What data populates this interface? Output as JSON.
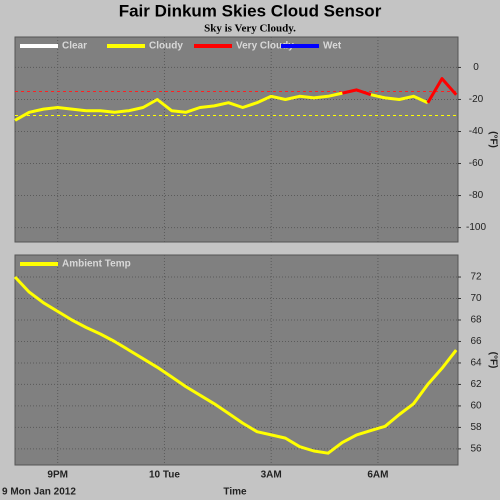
{
  "title": "Fair Dinkum Skies Cloud Sensor",
  "subtitle": "Sky is Very Cloudy.",
  "chart_data": [
    {
      "type": "line",
      "ylabel": "(°F)",
      "x": [
        19.8,
        20.2,
        20.6,
        21.0,
        21.4,
        21.8,
        22.2,
        22.6,
        23.0,
        23.4,
        23.8,
        24.2,
        24.6,
        25.0,
        25.4,
        25.8,
        26.2,
        26.6,
        27.0,
        27.4,
        27.8,
        28.2,
        28.6,
        29.0,
        29.4,
        29.8,
        30.2,
        30.6,
        31.0,
        31.4,
        31.8,
        32.2
      ],
      "xlim": [
        19.8,
        32.25
      ],
      "xticks": [
        21,
        24,
        27,
        30
      ],
      "ylim": [
        -109,
        19
      ],
      "yticks": [
        0,
        -20,
        -40,
        -60,
        -80,
        -100
      ],
      "grid": true,
      "thresholds": [
        {
          "value": -15,
          "color": "#ff2020"
        },
        {
          "value": -30,
          "color": "#ffff00"
        }
      ],
      "series": [
        {
          "name": "Clear",
          "color": "#ffffff",
          "values": [
            null,
            null,
            null,
            null,
            null,
            null,
            null,
            null,
            null,
            null,
            null,
            null,
            null,
            null,
            null,
            null,
            null,
            null,
            null,
            null,
            null,
            null,
            null,
            null,
            null,
            null,
            null,
            null,
            null,
            null,
            null,
            null
          ]
        },
        {
          "name": "Cloudy",
          "color": "#ffff00",
          "values": [
            -33,
            -28,
            -26,
            -25,
            -26,
            -27,
            -27,
            -28,
            -27,
            -25,
            -20,
            -27,
            -28,
            -25,
            -24,
            -22,
            -25,
            -22,
            -18,
            -20,
            -18,
            -19,
            -18,
            -16,
            null,
            -17,
            -19,
            -20,
            -18,
            -22,
            null,
            null
          ]
        },
        {
          "name": "Very Cloudy",
          "color": "#ff0000",
          "values": [
            null,
            null,
            null,
            null,
            null,
            null,
            null,
            null,
            null,
            null,
            null,
            null,
            null,
            null,
            null,
            null,
            null,
            null,
            null,
            null,
            null,
            null,
            null,
            -16,
            -14,
            -17,
            null,
            null,
            null,
            -22,
            -7,
            -17
          ]
        },
        {
          "name": "Wet",
          "color": "#0000ff",
          "values": [
            null,
            null,
            null,
            null,
            null,
            null,
            null,
            null,
            null,
            null,
            null,
            null,
            null,
            null,
            null,
            null,
            null,
            null,
            null,
            null,
            null,
            null,
            null,
            null,
            null,
            null,
            null,
            null,
            null,
            null,
            null,
            null
          ]
        }
      ]
    },
    {
      "type": "line",
      "ylabel": "(°F)",
      "xlabel": "Time",
      "date_label": "9 Mon Jan 2012",
      "x": [
        19.8,
        20.2,
        20.6,
        21.0,
        21.4,
        21.8,
        22.2,
        22.6,
        23.0,
        23.4,
        23.8,
        24.2,
        24.6,
        25.0,
        25.4,
        25.8,
        26.2,
        26.6,
        27.0,
        27.4,
        27.8,
        28.2,
        28.6,
        29.0,
        29.4,
        29.8,
        30.2,
        30.6,
        31.0,
        31.4,
        31.8,
        32.2
      ],
      "xlim": [
        19.8,
        32.25
      ],
      "xticks": [
        {
          "value": 21,
          "label": "9PM"
        },
        {
          "value": 24,
          "label": "10 Tue"
        },
        {
          "value": 27,
          "label": "3AM"
        },
        {
          "value": 30,
          "label": "6AM"
        }
      ],
      "ylim": [
        54.5,
        74.05
      ],
      "yticks": [
        56,
        58,
        60,
        62,
        64,
        66,
        68,
        70,
        72
      ],
      "grid": true,
      "series": [
        {
          "name": "Ambient Temp",
          "color": "#ffff00",
          "values": [
            72,
            70.6,
            69.6,
            68.8,
            68.0,
            67.3,
            66.7,
            66.0,
            65.2,
            64.4,
            63.6,
            62.7,
            61.8,
            61.0,
            60.2,
            59.3,
            58.4,
            57.6,
            57.3,
            57.0,
            56.2,
            55.8,
            55.6,
            56.6,
            57.3,
            57.7,
            58.1,
            59.2,
            60.2,
            62,
            63.5,
            65.2
          ]
        }
      ]
    }
  ]
}
